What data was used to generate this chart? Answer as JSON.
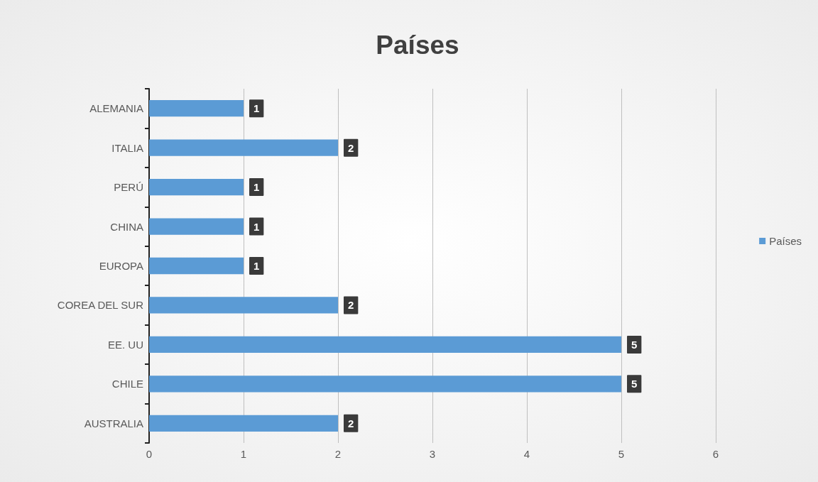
{
  "chart_data": {
    "type": "bar",
    "orientation": "horizontal",
    "title": "Países",
    "categories": [
      "ALEMANIA",
      "ITALIA",
      "PERÚ",
      "CHINA",
      "EUROPA",
      "COREA DEL SUR",
      "EE. UU",
      "CHILE",
      "AUSTRALIA"
    ],
    "series": [
      {
        "name": "Países",
        "color": "#5b9bd5",
        "values": [
          1,
          2,
          1,
          1,
          1,
          2,
          5,
          5,
          2
        ]
      }
    ],
    "xlim": [
      0,
      6
    ],
    "xticks": [
      0,
      1,
      2,
      3,
      4,
      5,
      6
    ],
    "grid": "x",
    "legend": "right",
    "data_labels": true
  }
}
